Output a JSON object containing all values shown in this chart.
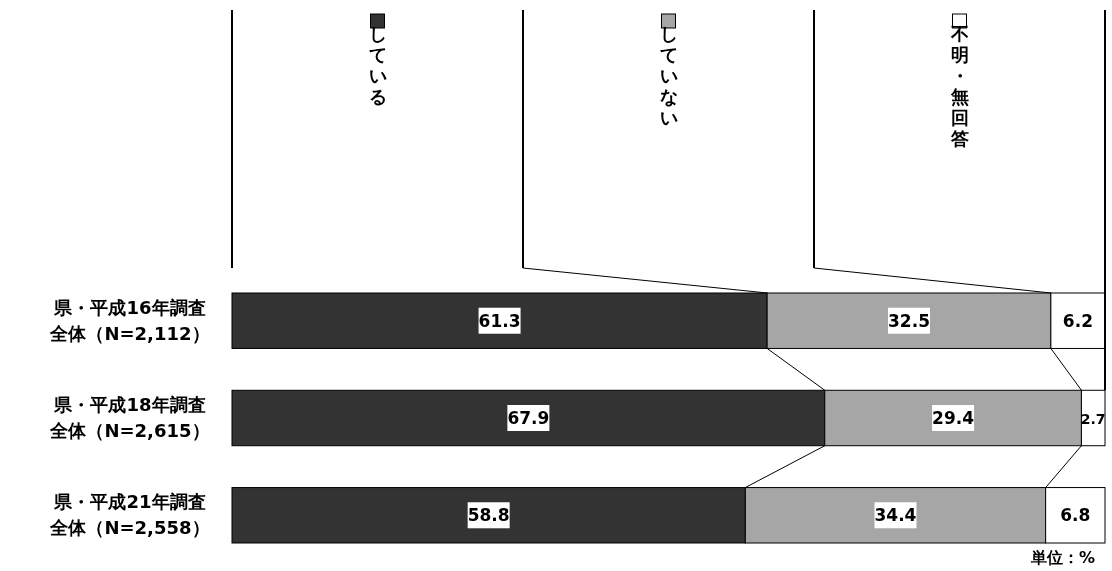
{
  "chart_data": {
    "type": "bar",
    "orientation": "horizontal",
    "stacked": true,
    "data_labels": true,
    "legend": "top",
    "xlim": [
      0,
      100
    ],
    "categories": [
      "県・平成16年調査全体（N=2,112）",
      "県・平成18年調査全体（N=2,615）",
      "県・平成21年調査全体（N=2,558）"
    ],
    "series": [
      {
        "name": "している",
        "color": "#333333",
        "values": [
          61.3,
          67.9,
          58.8
        ]
      },
      {
        "name": "していない",
        "color": "#a6a6a6",
        "values": [
          32.5,
          29.4,
          34.4
        ]
      },
      {
        "name": "不明・無回答",
        "color": "#ffffff",
        "values": [
          6.2,
          2.7,
          6.8
        ]
      }
    ],
    "annotations": [
      "単位：%"
    ]
  }
}
